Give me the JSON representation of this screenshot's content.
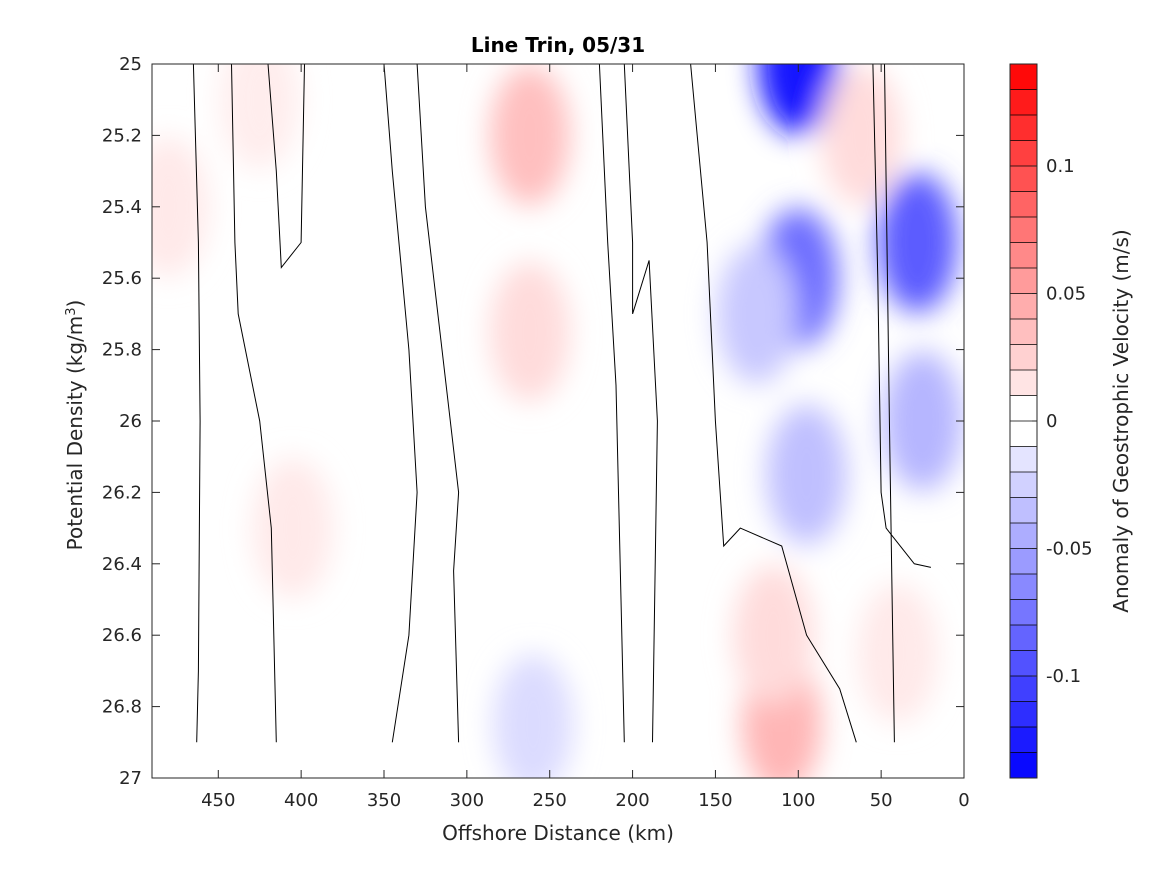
{
  "chart_data": {
    "type": "heatmap",
    "subtype": "filled-contour",
    "title": "Line Trin, 05/31",
    "xlabel": "Offshore Distance (km)",
    "ylabel_main": "Potential Density (kg/m",
    "ylabel_sup": "3",
    "ylabel_end": ")",
    "xlim": [
      490,
      0
    ],
    "x_reversed": true,
    "ylim": [
      25,
      27
    ],
    "y_reversed": true,
    "x_ticks": [
      450,
      400,
      350,
      300,
      250,
      200,
      150,
      100,
      50,
      0
    ],
    "y_ticks": [
      25,
      25.2,
      25.4,
      25.6,
      25.8,
      26,
      26.2,
      26.4,
      26.6,
      26.8,
      27
    ],
    "y_tick_labels": [
      "25",
      "25.2",
      "25.4",
      "25.6",
      "25.8",
      "26",
      "26.2",
      "26.4",
      "26.6",
      "26.8",
      "27"
    ],
    "colorbar": {
      "label": "Anomaly of Geostrophic Velocity (m/s)",
      "range": [
        -0.14,
        0.14
      ],
      "ticks": [
        0.1,
        0.05,
        0,
        -0.05,
        -0.1
      ],
      "tick_labels": [
        "0.1",
        "0.05",
        "0",
        "-0.05",
        "-0.1"
      ],
      "levels": 28,
      "colormap": "blue-white-red",
      "color_negative": "#0000ff",
      "color_zero": "#ffffff",
      "color_positive": "#ff0000"
    },
    "anomaly_features": [
      {
        "name": "blue core 100 km",
        "x": 100,
        "y": 25.0,
        "value": -0.13
      },
      {
        "name": "blue core 100 km mid",
        "x": 100,
        "y": 25.6,
        "value": -0.08
      },
      {
        "name": "blue broad 120 km",
        "x": 125,
        "y": 25.7,
        "value": -0.03
      },
      {
        "name": "blue lower 100 km",
        "x": 95,
        "y": 26.15,
        "value": -0.035
      },
      {
        "name": "blue nearshore 30 km",
        "x": 28,
        "y": 25.5,
        "value": -0.09
      },
      {
        "name": "blue nearshore lower",
        "x": 25,
        "y": 26.0,
        "value": -0.04
      },
      {
        "name": "blue deep 260 km",
        "x": 260,
        "y": 26.85,
        "value": -0.02
      },
      {
        "name": "red core 260 km",
        "x": 262,
        "y": 25.2,
        "value": 0.035
      },
      {
        "name": "red lower 260 km",
        "x": 262,
        "y": 25.75,
        "value": 0.02
      },
      {
        "name": "red deep 110 km",
        "x": 110,
        "y": 26.85,
        "value": 0.04
      },
      {
        "name": "red deep 110 km upper",
        "x": 115,
        "y": 26.6,
        "value": 0.02
      },
      {
        "name": "red 60 km",
        "x": 62,
        "y": 25.2,
        "value": 0.02
      },
      {
        "name": "red 40 km deep",
        "x": 40,
        "y": 26.65,
        "value": 0.012
      },
      {
        "name": "red edge 480 km",
        "x": 480,
        "y": 25.4,
        "value": 0.012
      },
      {
        "name": "red 405 km",
        "x": 405,
        "y": 26.3,
        "value": 0.012
      },
      {
        "name": "red 425 km top",
        "x": 425,
        "y": 25.1,
        "value": 0.01
      }
    ],
    "zero_contours": [
      [
        [
          465,
          25.0
        ],
        [
          462,
          25.5
        ],
        [
          461,
          26.0
        ],
        [
          462,
          26.7
        ],
        [
          463,
          26.9
        ]
      ],
      [
        [
          442,
          25.0
        ],
        [
          440,
          25.5
        ],
        [
          438,
          25.7
        ],
        [
          425,
          26.0
        ],
        [
          418,
          26.3
        ],
        [
          415,
          26.9
        ]
      ],
      [
        [
          420,
          25.0
        ],
        [
          415,
          25.3
        ],
        [
          412,
          25.57
        ],
        [
          400,
          25.5
        ],
        [
          398,
          25.0
        ]
      ],
      [
        [
          350,
          25.0
        ],
        [
          345,
          25.3
        ],
        [
          335,
          25.8
        ],
        [
          330,
          26.2
        ],
        [
          335,
          26.6
        ],
        [
          345,
          26.9
        ]
      ],
      [
        [
          330,
          25.0
        ],
        [
          325,
          25.4
        ],
        [
          315,
          25.8
        ],
        [
          305,
          26.2
        ],
        [
          308,
          26.42
        ],
        [
          305,
          26.9
        ]
      ],
      [
        [
          220,
          25.0
        ],
        [
          215,
          25.5
        ],
        [
          210,
          25.9
        ],
        [
          207,
          26.5
        ],
        [
          205,
          26.9
        ]
      ],
      [
        [
          205,
          25.0
        ],
        [
          200,
          25.5
        ],
        [
          200,
          25.7
        ],
        [
          190,
          25.55
        ],
        [
          185,
          26.0
        ],
        [
          188,
          26.9
        ]
      ],
      [
        [
          165,
          25.0
        ],
        [
          155,
          25.5
        ],
        [
          150,
          26.0
        ],
        [
          145,
          26.35
        ],
        [
          135,
          26.3
        ],
        [
          110,
          26.35
        ],
        [
          95,
          26.6
        ],
        [
          75,
          26.75
        ],
        [
          65,
          26.9
        ]
      ],
      [
        [
          55,
          25.0
        ],
        [
          52,
          25.6
        ],
        [
          50,
          26.2
        ],
        [
          47,
          26.3
        ],
        [
          30,
          26.4
        ],
        [
          20,
          26.41
        ]
      ],
      [
        [
          48,
          25.0
        ],
        [
          45,
          26.0
        ],
        [
          43,
          26.6
        ],
        [
          42,
          26.9
        ]
      ]
    ]
  }
}
